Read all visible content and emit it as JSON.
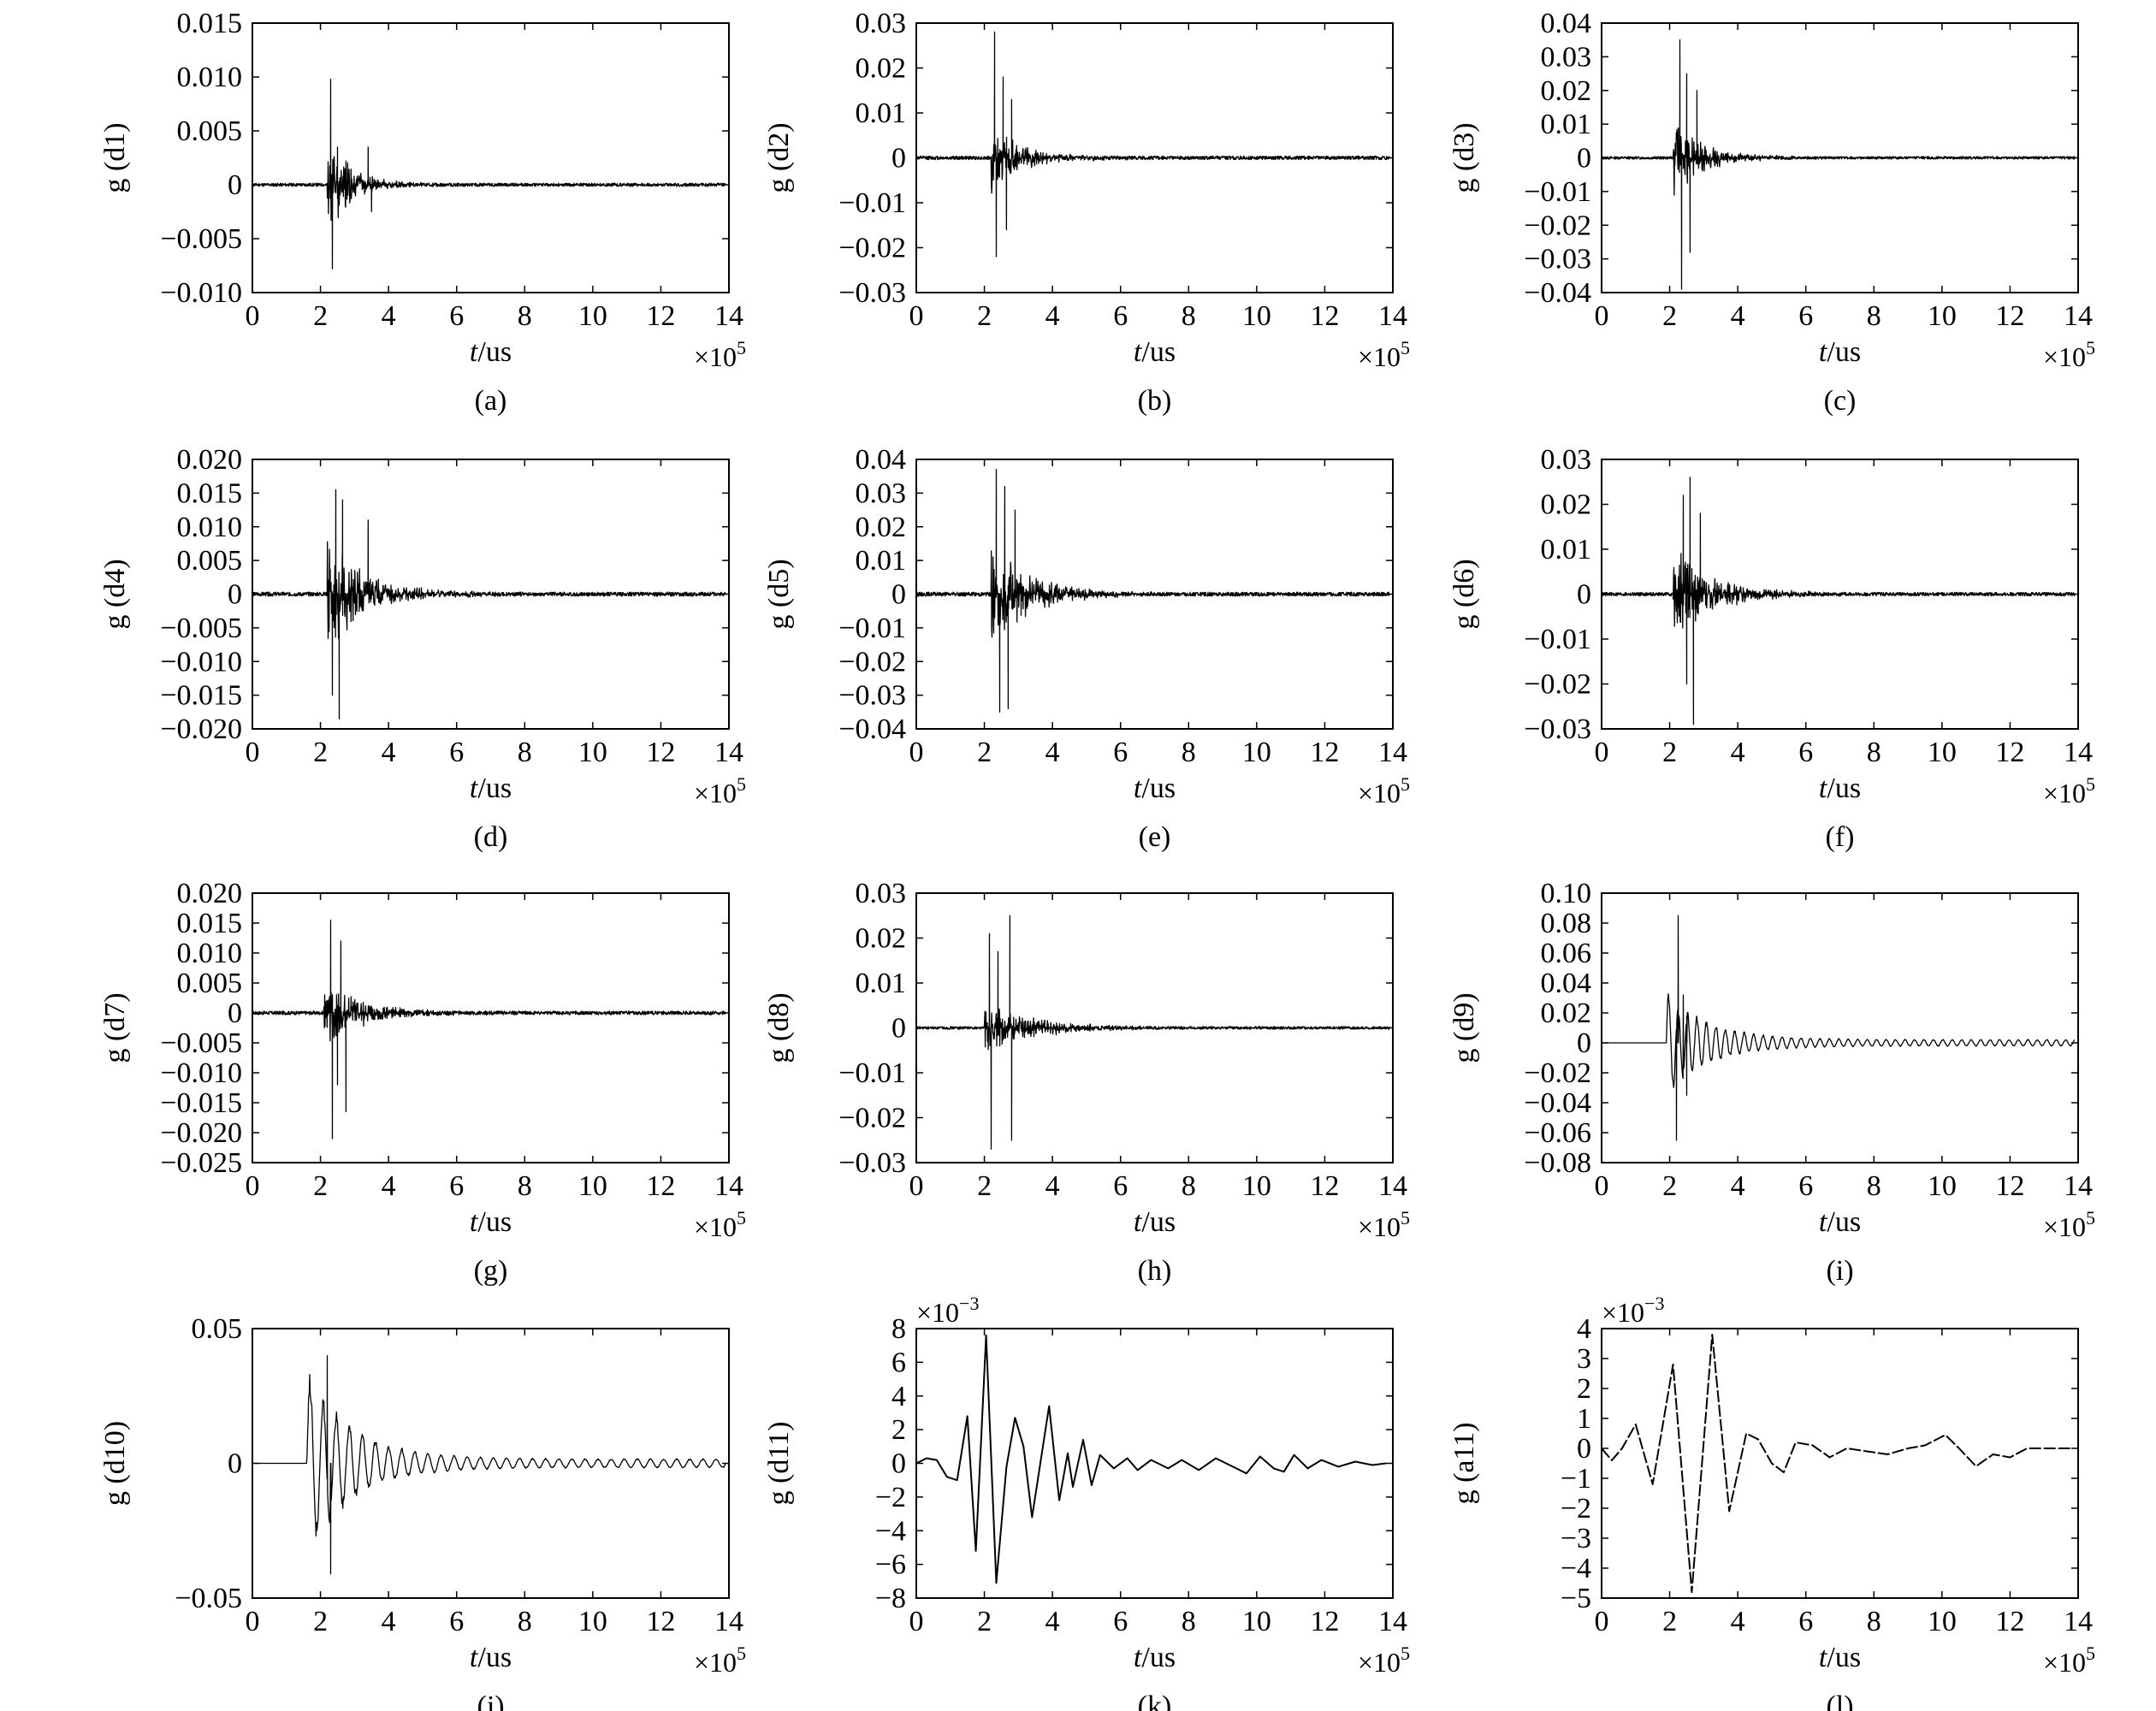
{
  "chart_data": [
    {
      "type": "line",
      "panel_label": "(a)",
      "xlabel_italic": "t",
      "xlabel_unit": "/us",
      "x_multiplier": "×10",
      "x_multiplier_exp": "5",
      "ylabel": "g (d1)",
      "y_multiplier": "",
      "y_multiplier_exp": "",
      "xlim": [
        0,
        14
      ],
      "xticks": [
        0,
        2,
        4,
        6,
        8,
        10,
        12,
        14
      ],
      "xtick_labels": [
        "0",
        "2",
        "4",
        "6",
        "8",
        "10",
        "12",
        "14"
      ],
      "ylim": [
        -0.01,
        0.015
      ],
      "yticks": [
        -0.01,
        -0.005,
        0,
        0.005,
        0.01,
        0.015
      ],
      "ytick_labels": [
        "−0.010",
        "−0.005",
        "0",
        "0.005",
        "0.010",
        "0.015"
      ],
      "signal": {
        "kind": "burst",
        "onset": 2.2,
        "amplitude": 0.005,
        "decay": 0.7,
        "freq": 9,
        "noise": 0.00015,
        "seed": 11
      },
      "peaks": [
        [
          2.3,
          0.0098
        ],
        [
          2.35,
          -0.0078
        ],
        [
          2.5,
          0.0035
        ],
        [
          3.4,
          0.0035
        ],
        [
          3.5,
          -0.0025
        ],
        [
          2.75,
          0.0022
        ]
      ]
    },
    {
      "type": "line",
      "panel_label": "(b)",
      "xlabel_italic": "t",
      "xlabel_unit": "/us",
      "x_multiplier": "×10",
      "x_multiplier_exp": "5",
      "ylabel": "g (d2)",
      "y_multiplier": "",
      "y_multiplier_exp": "",
      "xlim": [
        0,
        14
      ],
      "xticks": [
        0,
        2,
        4,
        6,
        8,
        10,
        12,
        14
      ],
      "xtick_labels": [
        "0",
        "2",
        "4",
        "6",
        "8",
        "10",
        "12",
        "14"
      ],
      "ylim": [
        -0.03,
        0.03
      ],
      "yticks": [
        -0.03,
        -0.02,
        -0.01,
        0,
        0.01,
        0.02,
        0.03
      ],
      "ytick_labels": [
        "−0.03",
        "−0.02",
        "−0.01",
        "0",
        "0.01",
        "0.02",
        "0.03"
      ],
      "signal": {
        "kind": "burst",
        "onset": 2.2,
        "amplitude": 0.008,
        "decay": 0.9,
        "freq": 8,
        "noise": 0.0004,
        "seed": 12
      },
      "peaks": [
        [
          2.3,
          0.028
        ],
        [
          2.35,
          -0.022
        ],
        [
          2.55,
          0.018
        ],
        [
          2.65,
          -0.016
        ],
        [
          2.8,
          0.013
        ]
      ]
    },
    {
      "type": "line",
      "panel_label": "(c)",
      "xlabel_italic": "t",
      "xlabel_unit": "/us",
      "x_multiplier": "×10",
      "x_multiplier_exp": "5",
      "ylabel": "g (d3)",
      "y_multiplier": "",
      "y_multiplier_exp": "",
      "xlim": [
        0,
        14
      ],
      "xticks": [
        0,
        2,
        4,
        6,
        8,
        10,
        12,
        14
      ],
      "xtick_labels": [
        "0",
        "2",
        "4",
        "6",
        "8",
        "10",
        "12",
        "14"
      ],
      "ylim": [
        -0.04,
        0.04
      ],
      "yticks": [
        -0.04,
        -0.03,
        -0.02,
        -0.01,
        0,
        0.01,
        0.02,
        0.03,
        0.04
      ],
      "ytick_labels": [
        "−0.04",
        "−0.03",
        "−0.02",
        "−0.01",
        "0",
        "0.01",
        "0.02",
        "0.03",
        "0.04"
      ],
      "signal": {
        "kind": "burst",
        "onset": 2.1,
        "amplitude": 0.012,
        "decay": 0.9,
        "freq": 8,
        "noise": 0.0004,
        "seed": 13
      },
      "peaks": [
        [
          2.3,
          0.035
        ],
        [
          2.35,
          -0.039
        ],
        [
          2.5,
          0.025
        ],
        [
          2.6,
          -0.028
        ],
        [
          2.8,
          0.02
        ]
      ]
    },
    {
      "type": "line",
      "panel_label": "(d)",
      "xlabel_italic": "t",
      "xlabel_unit": "/us",
      "x_multiplier": "×10",
      "x_multiplier_exp": "5",
      "ylabel": "g (d4)",
      "y_multiplier": "",
      "y_multiplier_exp": "",
      "xlim": [
        0,
        14
      ],
      "xticks": [
        0,
        2,
        4,
        6,
        8,
        10,
        12,
        14
      ],
      "xtick_labels": [
        "0",
        "2",
        "4",
        "6",
        "8",
        "10",
        "12",
        "14"
      ],
      "ylim": [
        -0.02,
        0.02
      ],
      "yticks": [
        -0.02,
        -0.015,
        -0.01,
        -0.005,
        0,
        0.005,
        0.01,
        0.015,
        0.02
      ],
      "ytick_labels": [
        "−0.020",
        "−0.015",
        "−0.010",
        "−0.005",
        "0",
        "0.005",
        "0.010",
        "0.015",
        "0.020"
      ],
      "signal": {
        "kind": "burst",
        "onset": 2.2,
        "amplitude": 0.009,
        "decay": 1.1,
        "freq": 8,
        "noise": 0.0003,
        "seed": 14
      },
      "peaks": [
        [
          2.45,
          0.0155
        ],
        [
          2.55,
          -0.0185
        ],
        [
          2.35,
          -0.015
        ],
        [
          2.65,
          0.014
        ],
        [
          3.4,
          0.011
        ]
      ]
    },
    {
      "type": "line",
      "panel_label": "(e)",
      "xlabel_italic": "t",
      "xlabel_unit": "/us",
      "x_multiplier": "×10",
      "x_multiplier_exp": "5",
      "ylabel": "g (d5)",
      "y_multiplier": "",
      "y_multiplier_exp": "",
      "xlim": [
        0,
        14
      ],
      "xticks": [
        0,
        2,
        4,
        6,
        8,
        10,
        12,
        14
      ],
      "xtick_labels": [
        "0",
        "2",
        "4",
        "6",
        "8",
        "10",
        "12",
        "14"
      ],
      "ylim": [
        -0.04,
        0.04
      ],
      "yticks": [
        -0.04,
        -0.03,
        -0.02,
        -0.01,
        0,
        0.01,
        0.02,
        0.03,
        0.04
      ],
      "ytick_labels": [
        "−0.04",
        "−0.03",
        "−0.02",
        "−0.01",
        "0",
        "0.01",
        "0.02",
        "0.03",
        "0.04"
      ],
      "signal": {
        "kind": "burst",
        "onset": 2.2,
        "amplitude": 0.018,
        "decay": 1.1,
        "freq": 8,
        "noise": 0.0006,
        "seed": 15
      },
      "peaks": [
        [
          2.35,
          0.037
        ],
        [
          2.45,
          -0.035
        ],
        [
          2.6,
          0.032
        ],
        [
          2.7,
          -0.034
        ],
        [
          2.9,
          0.025
        ]
      ]
    },
    {
      "type": "line",
      "panel_label": "(f)",
      "xlabel_italic": "t",
      "xlabel_unit": "/us",
      "x_multiplier": "×10",
      "x_multiplier_exp": "5",
      "ylabel": "g (d6)",
      "y_multiplier": "",
      "y_multiplier_exp": "",
      "xlim": [
        0,
        14
      ],
      "xticks": [
        0,
        2,
        4,
        6,
        8,
        10,
        12,
        14
      ],
      "xtick_labels": [
        "0",
        "2",
        "4",
        "6",
        "8",
        "10",
        "12",
        "14"
      ],
      "ylim": [
        -0.03,
        0.03
      ],
      "yticks": [
        -0.03,
        -0.02,
        -0.01,
        0,
        0.01,
        0.02,
        0.03
      ],
      "ytick_labels": [
        "−0.03",
        "−0.02",
        "−0.01",
        "0",
        "0.01",
        "0.02",
        "0.03"
      ],
      "signal": {
        "kind": "burst",
        "onset": 2.1,
        "amplitude": 0.012,
        "decay": 1.1,
        "freq": 8,
        "noise": 0.0004,
        "seed": 16
      },
      "peaks": [
        [
          2.6,
          0.026
        ],
        [
          2.7,
          -0.029
        ],
        [
          2.4,
          0.022
        ],
        [
          2.5,
          -0.02
        ],
        [
          2.9,
          0.018
        ]
      ]
    },
    {
      "type": "line",
      "panel_label": "(g)",
      "xlabel_italic": "t",
      "xlabel_unit": "/us",
      "x_multiplier": "×10",
      "x_multiplier_exp": "5",
      "ylabel": "g (d7)",
      "y_multiplier": "",
      "y_multiplier_exp": "",
      "xlim": [
        0,
        14
      ],
      "xticks": [
        0,
        2,
        4,
        6,
        8,
        10,
        12,
        14
      ],
      "xtick_labels": [
        "0",
        "2",
        "4",
        "6",
        "8",
        "10",
        "12",
        "14"
      ],
      "ylim": [
        -0.025,
        0.02
      ],
      "yticks": [
        -0.025,
        -0.02,
        -0.015,
        -0.01,
        -0.005,
        0,
        0.005,
        0.01,
        0.015,
        0.02
      ],
      "ytick_labels": [
        "−0.025",
        "−0.020",
        "−0.015",
        "−0.010",
        "−0.005",
        "0",
        "0.005",
        "0.010",
        "0.015",
        "0.020"
      ],
      "signal": {
        "kind": "burst",
        "onset": 2.1,
        "amplitude": 0.006,
        "decay": 1.1,
        "freq": 8,
        "noise": 0.0003,
        "seed": 17
      },
      "peaks": [
        [
          2.3,
          0.0155
        ],
        [
          2.35,
          -0.021
        ],
        [
          2.6,
          0.012
        ],
        [
          2.75,
          -0.0165
        ],
        [
          2.5,
          -0.012
        ]
      ]
    },
    {
      "type": "line",
      "panel_label": "(h)",
      "xlabel_italic": "t",
      "xlabel_unit": "/us",
      "x_multiplier": "×10",
      "x_multiplier_exp": "5",
      "ylabel": "g (d8)",
      "y_multiplier": "",
      "y_multiplier_exp": "",
      "xlim": [
        0,
        14
      ],
      "xticks": [
        0,
        2,
        4,
        6,
        8,
        10,
        12,
        14
      ],
      "xtick_labels": [
        "0",
        "2",
        "4",
        "6",
        "8",
        "10",
        "12",
        "14"
      ],
      "ylim": [
        -0.03,
        0.03
      ],
      "yticks": [
        -0.03,
        -0.02,
        -0.01,
        0,
        0.01,
        0.02,
        0.03
      ],
      "ytick_labels": [
        "−0.03",
        "−0.02",
        "−0.01",
        "0",
        "0.01",
        "0.02",
        "0.03"
      ],
      "signal": {
        "kind": "burst",
        "onset": 2.0,
        "amplitude": 0.006,
        "decay": 1.5,
        "freq": 6,
        "noise": 0.0003,
        "seed": 18
      },
      "peaks": [
        [
          2.15,
          0.021
        ],
        [
          2.2,
          -0.027
        ],
        [
          2.75,
          0.025
        ],
        [
          2.8,
          -0.025
        ],
        [
          2.4,
          0.017
        ]
      ]
    },
    {
      "type": "line",
      "panel_label": "(i)",
      "xlabel_italic": "t",
      "xlabel_unit": "/us",
      "x_multiplier": "×10",
      "x_multiplier_exp": "5",
      "ylabel": "g (d9)",
      "y_multiplier": "",
      "y_multiplier_exp": "",
      "xlim": [
        0,
        14
      ],
      "xticks": [
        0,
        2,
        4,
        6,
        8,
        10,
        12,
        14
      ],
      "xtick_labels": [
        "0",
        "2",
        "4",
        "6",
        "8",
        "10",
        "12",
        "14"
      ],
      "ylim": [
        -0.08,
        0.1
      ],
      "yticks": [
        -0.08,
        -0.06,
        -0.04,
        -0.02,
        0,
        0.02,
        0.04,
        0.06,
        0.08,
        0.1
      ],
      "ytick_labels": [
        "−0.08",
        "−0.06",
        "−0.04",
        "−0.02",
        "0",
        "0.02",
        "0.04",
        "0.06",
        "0.08",
        "0.10"
      ],
      "signal": {
        "kind": "osc",
        "onset": 1.9,
        "amplitude": 0.03,
        "decay": 1.2,
        "freq": 3.6,
        "noise": 0.0,
        "seed": 19,
        "tail": 0.002
      },
      "peaks": [
        [
          2.25,
          0.085
        ],
        [
          2.2,
          -0.065
        ],
        [
          2.4,
          0.032
        ],
        [
          2.5,
          -0.035
        ]
      ]
    },
    {
      "type": "line",
      "panel_label": "(j)",
      "xlabel_italic": "t",
      "xlabel_unit": "/us",
      "x_multiplier": "×10",
      "x_multiplier_exp": "5",
      "ylabel": "g (d10)",
      "y_multiplier": "",
      "y_multiplier_exp": "",
      "xlim": [
        0,
        14
      ],
      "xticks": [
        0,
        2,
        4,
        6,
        8,
        10,
        12,
        14
      ],
      "xtick_labels": [
        "0",
        "2",
        "4",
        "6",
        "8",
        "10",
        "12",
        "14"
      ],
      "ylim": [
        -0.05,
        0.05
      ],
      "yticks": [
        -0.05,
        0,
        0.05
      ],
      "ytick_labels": [
        "−0.05",
        "0",
        "0.05"
      ],
      "signal": {
        "kind": "osc",
        "onset": 1.6,
        "amplitude": 0.03,
        "decay": 1.3,
        "freq": 2.6,
        "noise": 0.0,
        "seed": 20,
        "tail": 0.0015
      },
      "peaks": [
        [
          2.2,
          0.04
        ],
        [
          2.3,
          -0.041
        ]
      ]
    },
    {
      "type": "line",
      "panel_label": "(k)",
      "xlabel_italic": "t",
      "xlabel_unit": "/us",
      "x_multiplier": "×10",
      "x_multiplier_exp": "5",
      "ylabel": "g (d11)",
      "y_multiplier": "×10",
      "y_multiplier_exp": "−3",
      "xlim": [
        0,
        14
      ],
      "xticks": [
        0,
        2,
        4,
        6,
        8,
        10,
        12,
        14
      ],
      "xtick_labels": [
        "0",
        "2",
        "4",
        "6",
        "8",
        "10",
        "12",
        "14"
      ],
      "ylim": [
        -8,
        8
      ],
      "yticks": [
        -8,
        -6,
        -4,
        -2,
        0,
        2,
        4,
        6,
        8
      ],
      "ytick_labels": [
        "−8",
        "−6",
        "−4",
        "−2",
        "0",
        "2",
        "4",
        "6",
        "8"
      ],
      "signal": {
        "kind": "points"
      },
      "points": [
        [
          0,
          0
        ],
        [
          0.3,
          0.3
        ],
        [
          0.6,
          0.2
        ],
        [
          0.9,
          -0.8
        ],
        [
          1.2,
          -1.0
        ],
        [
          1.5,
          2.8
        ],
        [
          1.75,
          -5.2
        ],
        [
          2.05,
          7.6
        ],
        [
          2.35,
          -7.1
        ],
        [
          2.65,
          -0.2
        ],
        [
          2.9,
          2.7
        ],
        [
          3.15,
          1.0
        ],
        [
          3.4,
          -3.2
        ],
        [
          3.9,
          3.4
        ],
        [
          4.2,
          -2.2
        ],
        [
          4.45,
          0.6
        ],
        [
          4.6,
          -1.4
        ],
        [
          4.9,
          1.4
        ],
        [
          5.15,
          -1.3
        ],
        [
          5.4,
          0.5
        ],
        [
          5.8,
          -0.3
        ],
        [
          6.2,
          0.3
        ],
        [
          6.5,
          -0.4
        ],
        [
          6.9,
          0.2
        ],
        [
          7.4,
          -0.3
        ],
        [
          7.8,
          0.2
        ],
        [
          8.3,
          -0.4
        ],
        [
          8.8,
          0.3
        ],
        [
          9.3,
          -0.2
        ],
        [
          9.7,
          -0.6
        ],
        [
          10.1,
          0.4
        ],
        [
          10.5,
          -0.3
        ],
        [
          10.8,
          -0.5
        ],
        [
          11.1,
          0.5
        ],
        [
          11.5,
          -0.3
        ],
        [
          11.9,
          0.2
        ],
        [
          12.4,
          -0.2
        ],
        [
          12.9,
          0.1
        ],
        [
          13.4,
          -0.1
        ],
        [
          13.8,
          0.0
        ]
      ]
    },
    {
      "type": "line",
      "panel_label": "(l)",
      "xlabel_italic": "t",
      "xlabel_unit": "/us",
      "x_multiplier": "×10",
      "x_multiplier_exp": "5",
      "ylabel": "g (a11)",
      "y_multiplier": "×10",
      "y_multiplier_exp": "−3",
      "xlim": [
        0,
        14
      ],
      "xticks": [
        0,
        2,
        4,
        6,
        8,
        10,
        12,
        14
      ],
      "xtick_labels": [
        "0",
        "2",
        "4",
        "6",
        "8",
        "10",
        "12",
        "14"
      ],
      "ylim": [
        -5,
        4
      ],
      "yticks": [
        -5,
        -4,
        -3,
        -2,
        -1,
        0,
        1,
        2,
        3,
        4
      ],
      "ytick_labels": [
        "−5",
        "−4",
        "−3",
        "−2",
        "−1",
        "0",
        "1",
        "2",
        "3",
        "4"
      ],
      "signal": {
        "kind": "points"
      },
      "points": [
        [
          0,
          0
        ],
        [
          0.3,
          -0.4
        ],
        [
          0.6,
          0.0
        ],
        [
          1.0,
          0.8
        ],
        [
          1.5,
          -1.2
        ],
        [
          2.1,
          2.8
        ],
        [
          2.65,
          -4.8
        ],
        [
          3.25,
          3.8
        ],
        [
          3.75,
          -2.1
        ],
        [
          4.25,
          0.5
        ],
        [
          4.6,
          0.3
        ],
        [
          5.0,
          -0.5
        ],
        [
          5.35,
          -0.8
        ],
        [
          5.7,
          0.2
        ],
        [
          6.2,
          0.1
        ],
        [
          6.7,
          -0.3
        ],
        [
          7.2,
          0.0
        ],
        [
          7.8,
          -0.1
        ],
        [
          8.4,
          -0.2
        ],
        [
          9.0,
          0.0
        ],
        [
          9.5,
          0.1
        ],
        [
          10.1,
          0.45
        ],
        [
          10.5,
          0.0
        ],
        [
          11.0,
          -0.6
        ],
        [
          11.5,
          -0.2
        ],
        [
          12.0,
          -0.3
        ],
        [
          12.5,
          0.0
        ],
        [
          13.2,
          0.0
        ],
        [
          13.8,
          0.0
        ]
      ]
    }
  ]
}
